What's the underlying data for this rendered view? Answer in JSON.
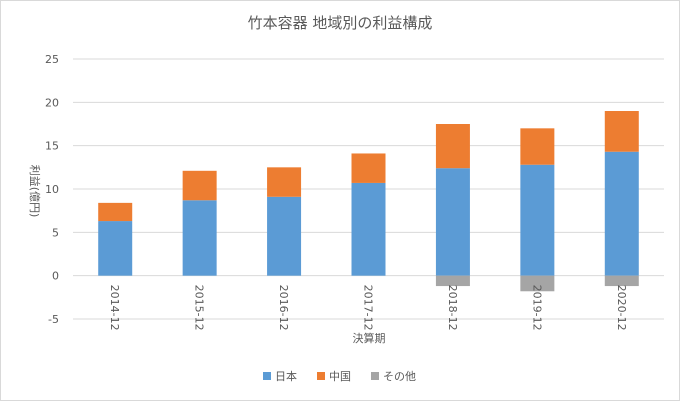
{
  "chart_data": {
    "type": "bar",
    "stacked": true,
    "title": "竹本容器 地域別の利益構成",
    "xlabel": "決算期",
    "ylabel": "利益(億円)",
    "categories": [
      "2014-12",
      "2015-12",
      "2016-12",
      "2017-12",
      "2018-12",
      "2019-12",
      "2020-12"
    ],
    "series": [
      {
        "name": "日本",
        "color": "#5b9bd5",
        "values": [
          6.3,
          8.7,
          9.1,
          10.7,
          12.4,
          12.8,
          14.3
        ]
      },
      {
        "name": "中国",
        "color": "#ed7d31",
        "values": [
          2.1,
          3.4,
          3.4,
          3.4,
          5.1,
          4.2,
          4.7
        ]
      },
      {
        "name": "その他",
        "color": "#a5a5a5",
        "values": [
          0,
          0,
          0,
          0,
          -1.2,
          -1.8,
          -1.2
        ]
      }
    ],
    "ylim": [
      -5,
      25
    ],
    "yticks": [
      -5,
      0,
      5,
      10,
      15,
      20,
      25
    ],
    "grid": true,
    "legend": "bottom"
  }
}
